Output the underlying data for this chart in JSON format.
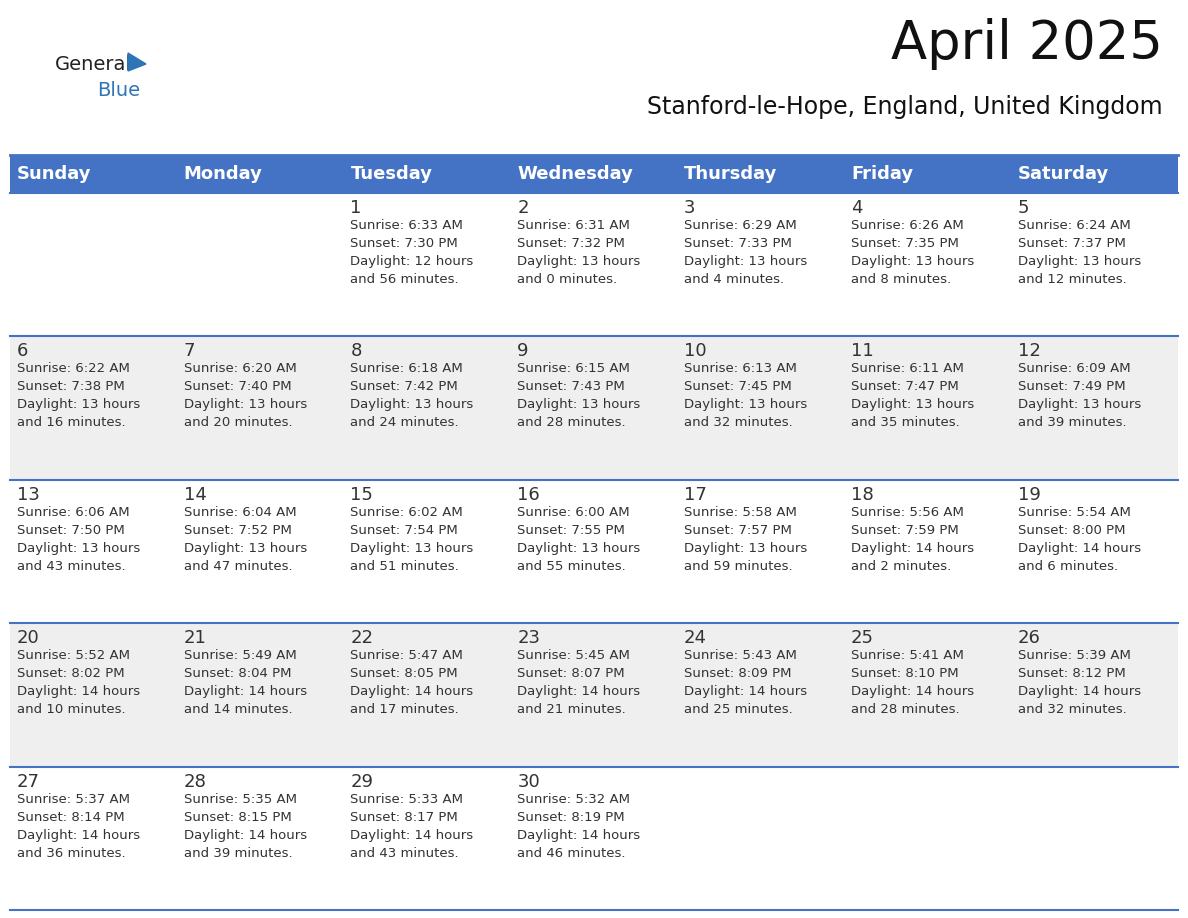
{
  "title": "April 2025",
  "subtitle": "Stanford-le-Hope, England, United Kingdom",
  "header_bg": "#4472C4",
  "header_text_color": "#FFFFFF",
  "cell_bg_white": "#FFFFFF",
  "cell_bg_gray": "#EFEFEF",
  "cell_text_color": "#333333",
  "day_number_color": "#333333",
  "border_color": "#4472C4",
  "days_of_week": [
    "Sunday",
    "Monday",
    "Tuesday",
    "Wednesday",
    "Thursday",
    "Friday",
    "Saturday"
  ],
  "weeks": [
    [
      {
        "day": "",
        "info": ""
      },
      {
        "day": "",
        "info": ""
      },
      {
        "day": "1",
        "info": "Sunrise: 6:33 AM\nSunset: 7:30 PM\nDaylight: 12 hours\nand 56 minutes."
      },
      {
        "day": "2",
        "info": "Sunrise: 6:31 AM\nSunset: 7:32 PM\nDaylight: 13 hours\nand 0 minutes."
      },
      {
        "day": "3",
        "info": "Sunrise: 6:29 AM\nSunset: 7:33 PM\nDaylight: 13 hours\nand 4 minutes."
      },
      {
        "day": "4",
        "info": "Sunrise: 6:26 AM\nSunset: 7:35 PM\nDaylight: 13 hours\nand 8 minutes."
      },
      {
        "day": "5",
        "info": "Sunrise: 6:24 AM\nSunset: 7:37 PM\nDaylight: 13 hours\nand 12 minutes."
      }
    ],
    [
      {
        "day": "6",
        "info": "Sunrise: 6:22 AM\nSunset: 7:38 PM\nDaylight: 13 hours\nand 16 minutes."
      },
      {
        "day": "7",
        "info": "Sunrise: 6:20 AM\nSunset: 7:40 PM\nDaylight: 13 hours\nand 20 minutes."
      },
      {
        "day": "8",
        "info": "Sunrise: 6:18 AM\nSunset: 7:42 PM\nDaylight: 13 hours\nand 24 minutes."
      },
      {
        "day": "9",
        "info": "Sunrise: 6:15 AM\nSunset: 7:43 PM\nDaylight: 13 hours\nand 28 minutes."
      },
      {
        "day": "10",
        "info": "Sunrise: 6:13 AM\nSunset: 7:45 PM\nDaylight: 13 hours\nand 32 minutes."
      },
      {
        "day": "11",
        "info": "Sunrise: 6:11 AM\nSunset: 7:47 PM\nDaylight: 13 hours\nand 35 minutes."
      },
      {
        "day": "12",
        "info": "Sunrise: 6:09 AM\nSunset: 7:49 PM\nDaylight: 13 hours\nand 39 minutes."
      }
    ],
    [
      {
        "day": "13",
        "info": "Sunrise: 6:06 AM\nSunset: 7:50 PM\nDaylight: 13 hours\nand 43 minutes."
      },
      {
        "day": "14",
        "info": "Sunrise: 6:04 AM\nSunset: 7:52 PM\nDaylight: 13 hours\nand 47 minutes."
      },
      {
        "day": "15",
        "info": "Sunrise: 6:02 AM\nSunset: 7:54 PM\nDaylight: 13 hours\nand 51 minutes."
      },
      {
        "day": "16",
        "info": "Sunrise: 6:00 AM\nSunset: 7:55 PM\nDaylight: 13 hours\nand 55 minutes."
      },
      {
        "day": "17",
        "info": "Sunrise: 5:58 AM\nSunset: 7:57 PM\nDaylight: 13 hours\nand 59 minutes."
      },
      {
        "day": "18",
        "info": "Sunrise: 5:56 AM\nSunset: 7:59 PM\nDaylight: 14 hours\nand 2 minutes."
      },
      {
        "day": "19",
        "info": "Sunrise: 5:54 AM\nSunset: 8:00 PM\nDaylight: 14 hours\nand 6 minutes."
      }
    ],
    [
      {
        "day": "20",
        "info": "Sunrise: 5:52 AM\nSunset: 8:02 PM\nDaylight: 14 hours\nand 10 minutes."
      },
      {
        "day": "21",
        "info": "Sunrise: 5:49 AM\nSunset: 8:04 PM\nDaylight: 14 hours\nand 14 minutes."
      },
      {
        "day": "22",
        "info": "Sunrise: 5:47 AM\nSunset: 8:05 PM\nDaylight: 14 hours\nand 17 minutes."
      },
      {
        "day": "23",
        "info": "Sunrise: 5:45 AM\nSunset: 8:07 PM\nDaylight: 14 hours\nand 21 minutes."
      },
      {
        "day": "24",
        "info": "Sunrise: 5:43 AM\nSunset: 8:09 PM\nDaylight: 14 hours\nand 25 minutes."
      },
      {
        "day": "25",
        "info": "Sunrise: 5:41 AM\nSunset: 8:10 PM\nDaylight: 14 hours\nand 28 minutes."
      },
      {
        "day": "26",
        "info": "Sunrise: 5:39 AM\nSunset: 8:12 PM\nDaylight: 14 hours\nand 32 minutes."
      }
    ],
    [
      {
        "day": "27",
        "info": "Sunrise: 5:37 AM\nSunset: 8:14 PM\nDaylight: 14 hours\nand 36 minutes."
      },
      {
        "day": "28",
        "info": "Sunrise: 5:35 AM\nSunset: 8:15 PM\nDaylight: 14 hours\nand 39 minutes."
      },
      {
        "day": "29",
        "info": "Sunrise: 5:33 AM\nSunset: 8:17 PM\nDaylight: 14 hours\nand 43 minutes."
      },
      {
        "day": "30",
        "info": "Sunrise: 5:32 AM\nSunset: 8:19 PM\nDaylight: 14 hours\nand 46 minutes."
      },
      {
        "day": "",
        "info": ""
      },
      {
        "day": "",
        "info": ""
      },
      {
        "day": "",
        "info": ""
      }
    ]
  ],
  "logo_general_color": "#222222",
  "logo_blue_color": "#2E75B6",
  "title_fontsize": 38,
  "subtitle_fontsize": 17,
  "header_fontsize": 13,
  "day_number_fontsize": 13,
  "cell_info_fontsize": 9.5
}
